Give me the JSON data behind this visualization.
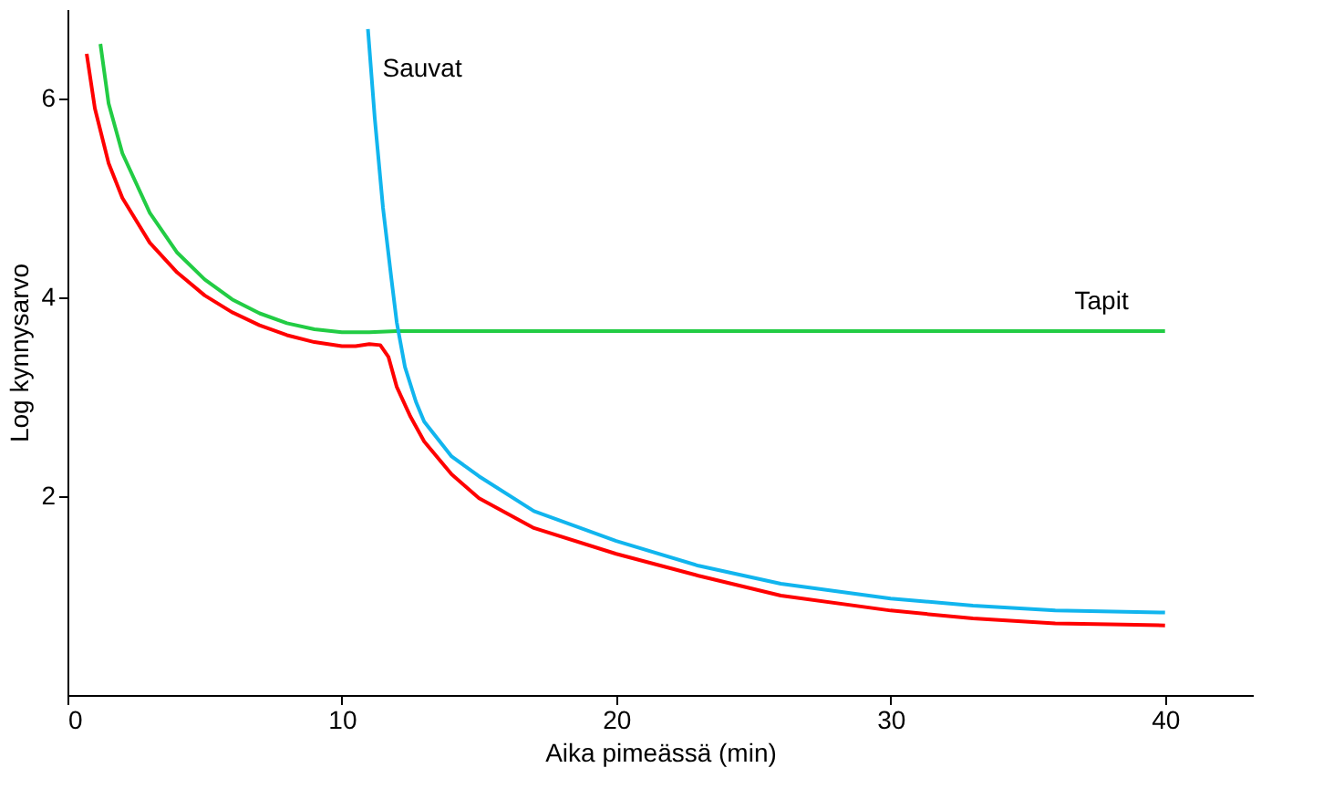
{
  "chart_data": {
    "type": "line",
    "xlabel": "Aika pimeässä (min)",
    "ylabel": "Log kynnysarvo",
    "xlim": [
      0,
      43.2
    ],
    "ylim": [
      0,
      6.9
    ],
    "xticks": [
      0,
      10,
      20,
      30,
      40
    ],
    "yticks": [
      2,
      4,
      6
    ],
    "grid": false,
    "marker": "none",
    "line_style": "solid",
    "series": [
      {
        "color": "#ff0000",
        "x": [
          0.7,
          1,
          1.5,
          2,
          3,
          4,
          5,
          6,
          7,
          8,
          9,
          10,
          10.5,
          11,
          11.4,
          11.7,
          12,
          12.5,
          13,
          14,
          15,
          17,
          20,
          23,
          26,
          30,
          33,
          36,
          38,
          40
        ],
        "values": [
          6.45,
          5.9,
          5.35,
          5.0,
          4.55,
          4.25,
          4.02,
          3.85,
          3.72,
          3.62,
          3.55,
          3.51,
          3.51,
          3.53,
          3.52,
          3.4,
          3.1,
          2.8,
          2.55,
          2.22,
          1.98,
          1.68,
          1.42,
          1.2,
          1.0,
          0.85,
          0.77,
          0.72,
          0.71,
          0.7
        ]
      },
      {
        "name": "Tapit",
        "color": "#22cc44",
        "x": [
          1.2,
          1.5,
          2,
          3,
          4,
          5,
          6,
          7,
          8,
          9,
          10,
          11,
          12,
          20,
          30,
          40
        ],
        "values": [
          6.55,
          5.95,
          5.45,
          4.85,
          4.45,
          4.18,
          3.98,
          3.84,
          3.74,
          3.68,
          3.65,
          3.65,
          3.66,
          3.66,
          3.66,
          3.66
        ]
      },
      {
        "name": "Sauvat",
        "color": "#11b5ee",
        "x": [
          10.95,
          11.2,
          11.5,
          11.8,
          12,
          12.3,
          12.7,
          13,
          14,
          15,
          17,
          20,
          23,
          26,
          30,
          33,
          36,
          40
        ],
        "values": [
          6.7,
          5.8,
          4.9,
          4.2,
          3.75,
          3.3,
          2.95,
          2.75,
          2.4,
          2.2,
          1.85,
          1.55,
          1.3,
          1.12,
          0.97,
          0.9,
          0.85,
          0.83
        ]
      }
    ]
  }
}
